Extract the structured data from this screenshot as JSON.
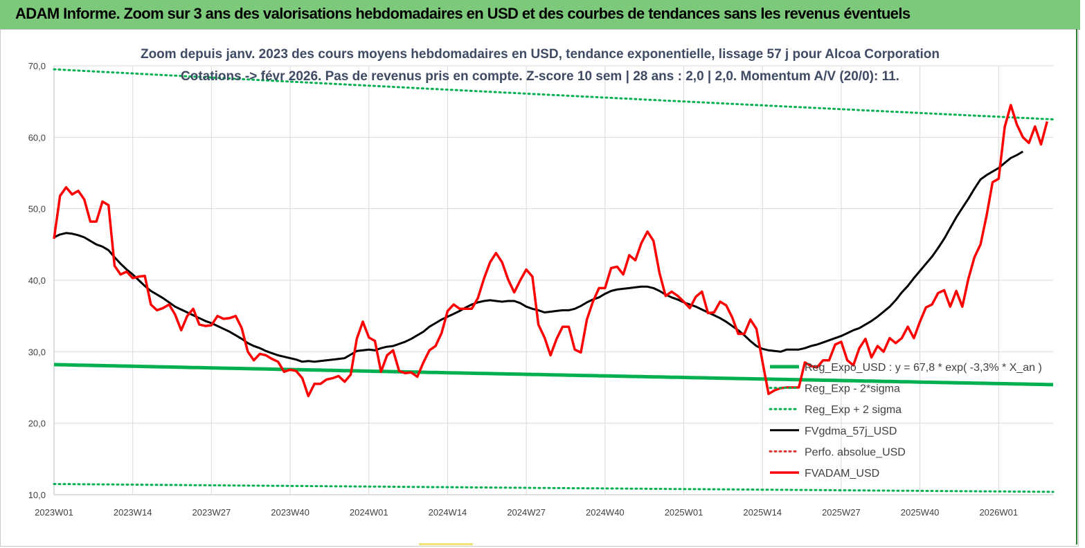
{
  "banner": {
    "title": "ADAM Informe. Zoom sur 3 ans des valorisations hebdomadaires en USD et des courbes de tendances sans les revenus éventuels",
    "color": "#7dc97b"
  },
  "chart_data": {
    "type": "line",
    "title_line1": "Zoom depuis janv. 2023 des cours moyens hebdomadaires en USD, tendance exponentielle, lissage 57 j pour Alcoa Corporation",
    "title_line2": "Cotations -> févr 2026.  Pas de revenus pris en compte. Z-score 10 sem  | 28 ans : 2,0 | 2,0. Momentum A/V (20/0): 11.",
    "xlabel": "",
    "ylabel": "",
    "ylim": [
      10,
      70
    ],
    "yticks": [
      "10,0",
      "20,0",
      "30,0",
      "40,0",
      "50,0",
      "60,0",
      "70,0"
    ],
    "xticks": [
      "2023W01",
      "2023W14",
      "2023W27",
      "2023W40",
      "2024W01",
      "2024W14",
      "2024W27",
      "2024W40",
      "2025W01",
      "2025W14",
      "2025W27",
      "2025W40",
      "2026W01"
    ],
    "x_weeks": 166,
    "grid": true,
    "legend_position": "bottom-right",
    "series": [
      {
        "name": "Reg_Expo_USD : y = 67,8 * exp( -3,3% *  X_an )",
        "color": "#00b050",
        "style": "solid-thick",
        "start": 28.2,
        "end": 25.4
      },
      {
        "name": "Reg_Exp - 2*sigma",
        "color": "#00b050",
        "style": "dotted",
        "start": 11.5,
        "end": 10.4
      },
      {
        "name": "Reg_Exp + 2 sigma",
        "color": "#00b050",
        "style": "dotted",
        "start": 69.5,
        "end": 62.5
      },
      {
        "name": "FVgdma_57j_USD",
        "color": "#000000",
        "style": "solid",
        "values": [
          46.0,
          46.4,
          46.6,
          46.5,
          46.3,
          46.0,
          45.5,
          45.0,
          44.7,
          44.2,
          43.2,
          42.3,
          41.5,
          40.8,
          40.0,
          39.2,
          38.5,
          38.0,
          37.5,
          36.9,
          36.3,
          35.9,
          35.5,
          35.1,
          34.7,
          34.3,
          34.0,
          33.6,
          33.2,
          32.8,
          32.3,
          31.8,
          31.2,
          30.8,
          30.5,
          30.1,
          29.8,
          29.5,
          29.3,
          29.1,
          28.9,
          28.6,
          28.7,
          28.6,
          28.7,
          28.8,
          28.9,
          29.0,
          29.1,
          29.6,
          30.1,
          30.2,
          30.3,
          30.2,
          30.5,
          30.7,
          30.8,
          31.1,
          31.4,
          31.8,
          32.3,
          32.8,
          33.5,
          34.0,
          34.5,
          34.9,
          35.3,
          35.7,
          36.2,
          36.6,
          36.9,
          37.1,
          37.2,
          37.1,
          37.0,
          37.1,
          37.1,
          36.8,
          36.3,
          36.0,
          35.8,
          35.5,
          35.6,
          35.7,
          35.8,
          35.8,
          36.0,
          36.4,
          36.9,
          37.3,
          37.6,
          38.1,
          38.5,
          38.7,
          38.8,
          38.9,
          39.0,
          39.1,
          39.1,
          38.9,
          38.5,
          38.0,
          37.6,
          37.3,
          36.9,
          36.6,
          36.3,
          35.9,
          35.5,
          35.1,
          34.7,
          34.2,
          33.6,
          33.0,
          32.3,
          31.5,
          30.8,
          30.4,
          30.2,
          30.1,
          30.0,
          30.3,
          30.3,
          30.3,
          30.5,
          30.8,
          31.0,
          31.3,
          31.6,
          31.9,
          32.2,
          32.6,
          33.0,
          33.3,
          33.8,
          34.3,
          34.9,
          35.6,
          36.3,
          37.2,
          38.3,
          39.2,
          40.3,
          41.3,
          42.3,
          43.3,
          44.5,
          45.8,
          47.3,
          48.8,
          50.1,
          51.4,
          52.8,
          54.1,
          54.7,
          55.2,
          55.7,
          56.4,
          57.1,
          57.5,
          58.0
        ]
      },
      {
        "name": "Perfo. absolue_USD",
        "color": "#e03030",
        "style": "dotted"
      },
      {
        "name": "FVADAM_USD",
        "color": "#ff0000",
        "style": "solid-thick",
        "values": [
          45.8,
          51.8,
          53.0,
          52.0,
          52.5,
          51.3,
          48.2,
          48.2,
          51.0,
          50.5,
          42.0,
          40.8,
          41.2,
          40.3,
          40.5,
          40.6,
          36.6,
          35.8,
          36.1,
          36.6,
          35.2,
          33.0,
          35.0,
          36.0,
          33.8,
          33.6,
          33.7,
          35.0,
          34.6,
          34.7,
          35.0,
          33.3,
          30.0,
          28.8,
          29.7,
          29.5,
          29.0,
          28.6,
          27.2,
          27.5,
          27.3,
          26.3,
          23.8,
          25.5,
          25.5,
          26.1,
          26.3,
          26.6,
          25.8,
          26.8,
          31.8,
          34.2,
          32.0,
          31.5,
          27.2,
          29.5,
          30.2,
          27.3,
          27.0,
          27.1,
          26.5,
          28.5,
          30.2,
          30.8,
          32.6,
          35.7,
          36.6,
          36.0,
          36.0,
          36.0,
          37.5,
          40.2,
          42.5,
          43.8,
          42.5,
          40.1,
          38.3,
          40.0,
          41.5,
          40.5,
          33.8,
          32.0,
          29.5,
          31.8,
          33.5,
          33.5,
          30.3,
          29.9,
          34.5,
          37.0,
          38.9,
          38.9,
          41.7,
          41.9,
          40.8,
          43.5,
          42.8,
          45.2,
          46.8,
          45.5,
          41.0,
          37.8,
          38.4,
          37.8,
          37.0,
          36.1,
          37.7,
          38.4,
          35.4,
          35.5,
          37.0,
          36.5,
          34.8,
          32.5,
          32.5,
          34.5,
          33.2,
          28.6,
          24.1,
          24.6,
          24.9,
          25.0,
          25.0,
          25.0,
          28.5,
          28.0,
          27.8,
          28.8,
          28.8,
          31.0,
          31.4,
          28.8,
          28.1,
          30.5,
          31.8,
          29.2,
          30.8,
          30.0,
          31.9,
          31.2,
          31.9,
          33.5,
          31.9,
          34.2,
          36.2,
          36.6,
          38.2,
          38.6,
          36.3,
          38.5,
          36.3,
          40.2,
          43.2,
          45.0,
          49.0,
          53.7,
          54.2,
          61.4,
          64.5,
          61.8,
          60.0,
          59.2,
          61.5,
          59.0,
          62.2
        ]
      }
    ]
  }
}
